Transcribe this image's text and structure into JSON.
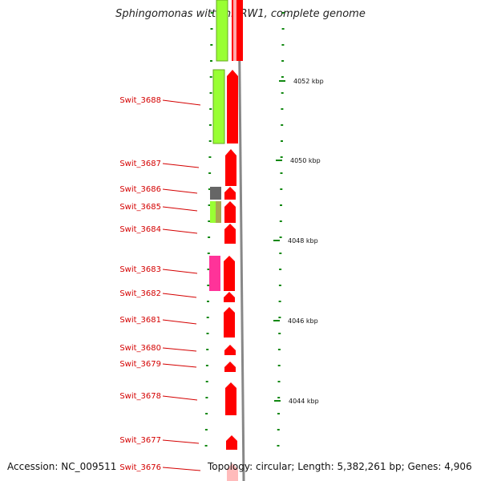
{
  "title": "Sphingomonas wittichii RW1, complete genome",
  "footer": {
    "accession": "Accession: NC_009511",
    "topology": "Topology: circular; Length: 5,382,261 bp; Genes: 4,906"
  },
  "colors": {
    "gene_red": "#ff0000",
    "cds_green": "#99ff33",
    "tick_green": "#118811",
    "label_red": "#d40000",
    "backbone": "#888888"
  },
  "genes": [
    {
      "id": "Swit_3688"
    },
    {
      "id": "Swit_3687"
    },
    {
      "id": "Swit_3686"
    },
    {
      "id": "Swit_3685"
    },
    {
      "id": "Swit_3684"
    },
    {
      "id": "Swit_3683"
    },
    {
      "id": "Swit_3682"
    },
    {
      "id": "Swit_3681"
    },
    {
      "id": "Swit_3680"
    },
    {
      "id": "Swit_3679"
    },
    {
      "id": "Swit_3678"
    },
    {
      "id": "Swit_3677"
    },
    {
      "id": "Swit_3676"
    }
  ],
  "scale_labels": [
    "4052 kbp",
    "4050 kbp",
    "4048 kbp",
    "4046 kbp",
    "4044 kbp"
  ]
}
